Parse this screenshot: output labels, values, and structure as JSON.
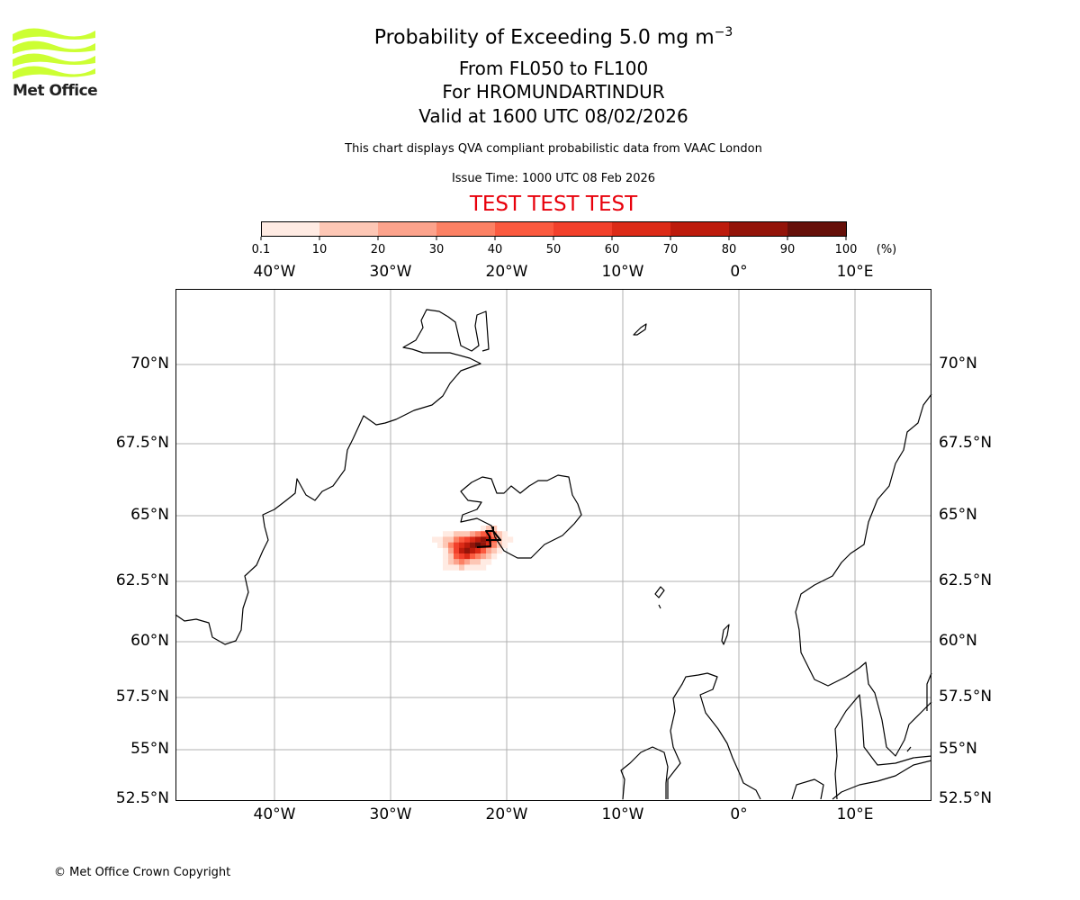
{
  "logo": {
    "text": "Met Office",
    "brand_color": "#ccff33"
  },
  "title": {
    "line1": "Probability of Exceeding 5.0 mg m",
    "line1_sup": "−3",
    "line2": "From FL050 to FL100",
    "line3": "For HROMUNDARTINDUR",
    "line4": "Valid at 1600 UTC 08/02/2026"
  },
  "subtitle": "This chart displays QVA compliant probabilistic data from VAAC London",
  "issue_time": "Issue Time: 1000 UTC 08 Feb 2026",
  "test_banner": "TEST TEST TEST",
  "colorbar": {
    "labels": [
      "0.1",
      "10",
      "20",
      "30",
      "40",
      "50",
      "60",
      "70",
      "80",
      "90",
      "100"
    ],
    "unit": "(%)",
    "colors": [
      "#ffebe3",
      "#fdc7b5",
      "#fca38c",
      "#fc8164",
      "#fb5a3f",
      "#f2402b",
      "#dc2b17",
      "#bd1b0c",
      "#931409",
      "#66100a"
    ]
  },
  "axes": {
    "lon_labels": [
      "40°W",
      "30°W",
      "20°W",
      "10°W",
      "0°",
      "10°E"
    ],
    "lat_labels": [
      "70°N",
      "67.5°N",
      "65°N",
      "62.5°N",
      "60°N",
      "57.5°N",
      "55°N",
      "52.5°N"
    ]
  },
  "plume": {
    "grid": [
      [
        0,
        0,
        0,
        0,
        0,
        0,
        0,
        0,
        0,
        5,
        15,
        15,
        0,
        0,
        0
      ],
      [
        0,
        0,
        5,
        5,
        15,
        15,
        15,
        25,
        35,
        45,
        55,
        35,
        15,
        5,
        0
      ],
      [
        5,
        5,
        15,
        15,
        35,
        45,
        55,
        65,
        75,
        85,
        75,
        45,
        15,
        5,
        5
      ],
      [
        0,
        5,
        15,
        35,
        55,
        65,
        75,
        85,
        90,
        85,
        65,
        35,
        15,
        5,
        0
      ],
      [
        0,
        0,
        5,
        25,
        55,
        75,
        85,
        75,
        65,
        45,
        25,
        15,
        5,
        0,
        0
      ],
      [
        0,
        0,
        5,
        15,
        45,
        55,
        65,
        45,
        35,
        25,
        15,
        5,
        0,
        0,
        0
      ],
      [
        0,
        0,
        5,
        15,
        25,
        35,
        25,
        15,
        15,
        5,
        5,
        0,
        0,
        0,
        0
      ],
      [
        0,
        0,
        5,
        5,
        5,
        15,
        5,
        5,
        5,
        5,
        0,
        0,
        0,
        0,
        0
      ]
    ]
  },
  "copyright": "© Met Office Crown Copyright"
}
